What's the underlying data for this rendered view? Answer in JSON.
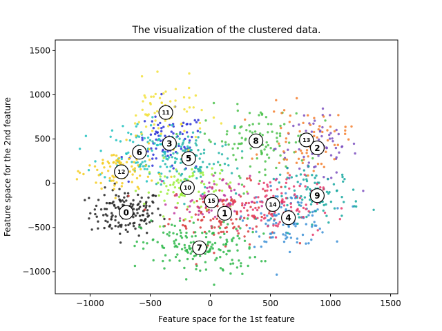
{
  "chart_data": {
    "type": "scatter",
    "title": "The visualization of the clustered data.",
    "xlabel": "Feature space for the 1st feature",
    "ylabel": "Feature space for the 2nd feature",
    "xlim": [
      -1290,
      1560
    ],
    "ylim": [
      -1250,
      1620
    ],
    "xticks": [
      -1000,
      -500,
      0,
      500,
      1000,
      1500
    ],
    "xtick_labels": [
      "−1000",
      "−500",
      "0",
      "500",
      "1000",
      "1500"
    ],
    "yticks": [
      -1000,
      -500,
      0,
      500,
      1000,
      1500
    ],
    "ytick_labels": [
      "−1000",
      "−500",
      "0",
      "500",
      "1000",
      "1500"
    ],
    "grid": false,
    "legend": "none",
    "clusters": [
      {
        "label": "0",
        "center": [
          -700,
          -330
        ],
        "color": "#222222",
        "spread": [
          150,
          130
        ],
        "count": 150
      },
      {
        "label": "1",
        "center": [
          120,
          -340
        ],
        "color": "#d93b3b",
        "spread": [
          230,
          170
        ],
        "count": 140
      },
      {
        "label": "2",
        "center": [
          890,
          400
        ],
        "color": "#7b4fc0",
        "spread": [
          170,
          190
        ],
        "count": 70
      },
      {
        "label": "3",
        "center": [
          -340,
          450
        ],
        "color": "#2a2fd6",
        "spread": [
          150,
          170
        ],
        "count": 90
      },
      {
        "label": "4",
        "center": [
          650,
          -390
        ],
        "color": "#3b8fd6",
        "spread": [
          170,
          160
        ],
        "count": 110
      },
      {
        "label": "5",
        "center": [
          -180,
          280
        ],
        "color": "#26b5a8",
        "spread": [
          190,
          180
        ],
        "count": 110
      },
      {
        "label": "6",
        "center": [
          -590,
          350
        ],
        "color": "#20c2c0",
        "spread": [
          170,
          170
        ],
        "count": 100
      },
      {
        "label": "7",
        "center": [
          -90,
          -730
        ],
        "color": "#2eb84a",
        "spread": [
          240,
          160
        ],
        "count": 160
      },
      {
        "label": "8",
        "center": [
          380,
          480
        ],
        "color": "#4cc24c",
        "spread": [
          220,
          190
        ],
        "count": 100
      },
      {
        "label": "9",
        "center": [
          890,
          -140
        ],
        "color": "#16a8a0",
        "spread": [
          180,
          150
        ],
        "count": 90
      },
      {
        "label": "10",
        "center": [
          -190,
          -50
        ],
        "color": "#9aef3a",
        "spread": [
          180,
          150
        ],
        "count": 80
      },
      {
        "label": "11",
        "center": [
          -370,
          800
        ],
        "color": "#f2e03a",
        "spread": [
          170,
          170
        ],
        "count": 70
      },
      {
        "label": "12",
        "center": [
          -740,
          130
        ],
        "color": "#f5cc1e",
        "spread": [
          140,
          140
        ],
        "count": 90
      },
      {
        "label": "13",
        "center": [
          800,
          490
        ],
        "color": "#f57f2e",
        "spread": [
          170,
          180
        ],
        "count": 70
      },
      {
        "label": "14",
        "center": [
          520,
          -240
        ],
        "color": "#e63a6b",
        "spread": [
          200,
          160
        ],
        "count": 110
      },
      {
        "label": "15",
        "center": [
          10,
          -200
        ],
        "color": "#c13aa0",
        "spread": [
          160,
          140
        ],
        "count": 60
      }
    ]
  }
}
